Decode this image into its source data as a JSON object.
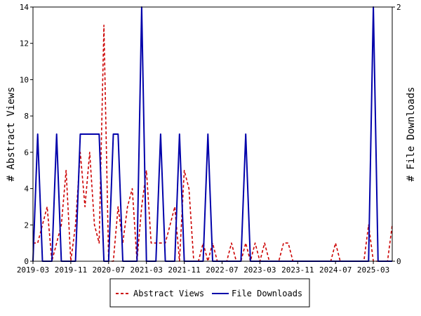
{
  "chart_data": {
    "type": "line",
    "ylabel_left": "# Abstract Views",
    "ylabel_right": "# File Downloads",
    "ylim_left": [
      0,
      14
    ],
    "ylim_right": [
      0,
      2
    ],
    "yticks_left": [
      "0",
      "2",
      "4",
      "6",
      "8",
      "10",
      "12",
      "14"
    ],
    "yticks_right": [
      "0",
      "2"
    ],
    "xtick_labels": [
      "2019-03",
      "2019-11",
      "2020-07",
      "2021-03",
      "2021-11",
      "2022-07",
      "2023-03",
      "2023-11",
      "2024-07",
      "2025-03"
    ],
    "grid": false,
    "legend_position": "bottom-center",
    "series": [
      {
        "name": "Abstract Views",
        "axis": "left",
        "color": "#cc0000",
        "style": "dashed",
        "x": [
          "2019-03",
          "2019-04",
          "2019-05",
          "2019-06",
          "2019-07",
          "2019-08",
          "2019-09",
          "2019-10",
          "2019-11",
          "2019-12",
          "2020-01",
          "2020-02",
          "2020-03",
          "2020-04",
          "2020-05",
          "2020-06",
          "2020-07",
          "2020-08",
          "2020-09",
          "2020-10",
          "2020-11",
          "2020-12",
          "2021-01",
          "2021-02",
          "2021-03",
          "2021-04",
          "2021-05",
          "2021-06",
          "2021-07",
          "2021-08",
          "2021-09",
          "2021-10",
          "2021-11",
          "2021-12",
          "2022-01",
          "2022-02",
          "2022-03",
          "2022-04",
          "2022-05",
          "2022-06",
          "2022-07",
          "2022-08",
          "2022-09",
          "2022-10",
          "2022-11",
          "2022-12",
          "2023-01",
          "2023-02",
          "2023-03",
          "2023-04",
          "2023-05",
          "2023-06",
          "2023-07",
          "2023-08",
          "2023-09",
          "2023-10",
          "2023-11",
          "2023-12",
          "2024-01",
          "2024-02",
          "2024-03",
          "2024-04",
          "2024-05",
          "2024-06",
          "2024-07",
          "2024-08",
          "2024-09",
          "2024-10",
          "2024-11",
          "2024-12",
          "2025-01",
          "2025-02",
          "2025-03",
          "2025-04",
          "2025-05",
          "2025-06",
          "2025-07"
        ],
        "values": [
          1,
          1,
          2,
          3,
          0,
          1,
          2,
          5,
          0,
          2,
          6,
          3,
          6,
          2,
          1,
          13,
          0,
          0,
          3,
          1,
          3,
          4,
          0,
          3,
          5,
          1,
          1,
          1,
          1,
          2,
          3,
          0,
          5,
          4,
          0,
          0,
          1,
          0,
          1,
          0,
          0,
          0,
          1,
          0,
          0,
          1,
          0,
          1,
          0,
          1,
          0,
          0,
          0,
          1,
          1,
          0,
          0,
          0,
          0,
          0,
          0,
          0,
          0,
          0,
          1,
          0,
          0,
          0,
          0,
          0,
          0,
          2,
          0,
          0,
          0,
          0,
          2
        ]
      },
      {
        "name": "File Downloads",
        "axis": "right",
        "color": "#0000aa",
        "style": "solid",
        "x": [
          "2019-03",
          "2019-04",
          "2019-05",
          "2019-06",
          "2019-07",
          "2019-08",
          "2019-09",
          "2019-10",
          "2019-11",
          "2019-12",
          "2020-01",
          "2020-02",
          "2020-03",
          "2020-04",
          "2020-05",
          "2020-06",
          "2020-07",
          "2020-08",
          "2020-09",
          "2020-10",
          "2020-11",
          "2020-12",
          "2021-01",
          "2021-02",
          "2021-03",
          "2021-04",
          "2021-05",
          "2021-06",
          "2021-07",
          "2021-08",
          "2021-09",
          "2021-10",
          "2021-11",
          "2021-12",
          "2022-01",
          "2022-02",
          "2022-03",
          "2022-04",
          "2022-05",
          "2022-06",
          "2022-07",
          "2022-08",
          "2022-09",
          "2022-10",
          "2022-11",
          "2022-12",
          "2023-01",
          "2023-02",
          "2023-03",
          "2023-04",
          "2023-05",
          "2023-06",
          "2023-07",
          "2023-08",
          "2023-09",
          "2023-10",
          "2023-11",
          "2023-12",
          "2024-01",
          "2024-02",
          "2024-03",
          "2024-04",
          "2024-05",
          "2024-06",
          "2024-07",
          "2024-08",
          "2024-09",
          "2024-10",
          "2024-11",
          "2024-12",
          "2025-01",
          "2025-02",
          "2025-03",
          "2025-04",
          "2025-05",
          "2025-06",
          "2025-07"
        ],
        "values": [
          0,
          1,
          0,
          0,
          0,
          1,
          0,
          0,
          0,
          0,
          1,
          1,
          1,
          1,
          1,
          0,
          0,
          1,
          1,
          0,
          0,
          0,
          0,
          2,
          0,
          0,
          0,
          1,
          0,
          0,
          0,
          1,
          0,
          0,
          0,
          0,
          0,
          1,
          0,
          0,
          0,
          0,
          0,
          0,
          0,
          1,
          0,
          0,
          0,
          0,
          0,
          0,
          0,
          0,
          0,
          0,
          0,
          0,
          0,
          0,
          0,
          0,
          0,
          0,
          0,
          0,
          0,
          0,
          0,
          0,
          0,
          0,
          2,
          0,
          0,
          0,
          0
        ]
      }
    ]
  }
}
